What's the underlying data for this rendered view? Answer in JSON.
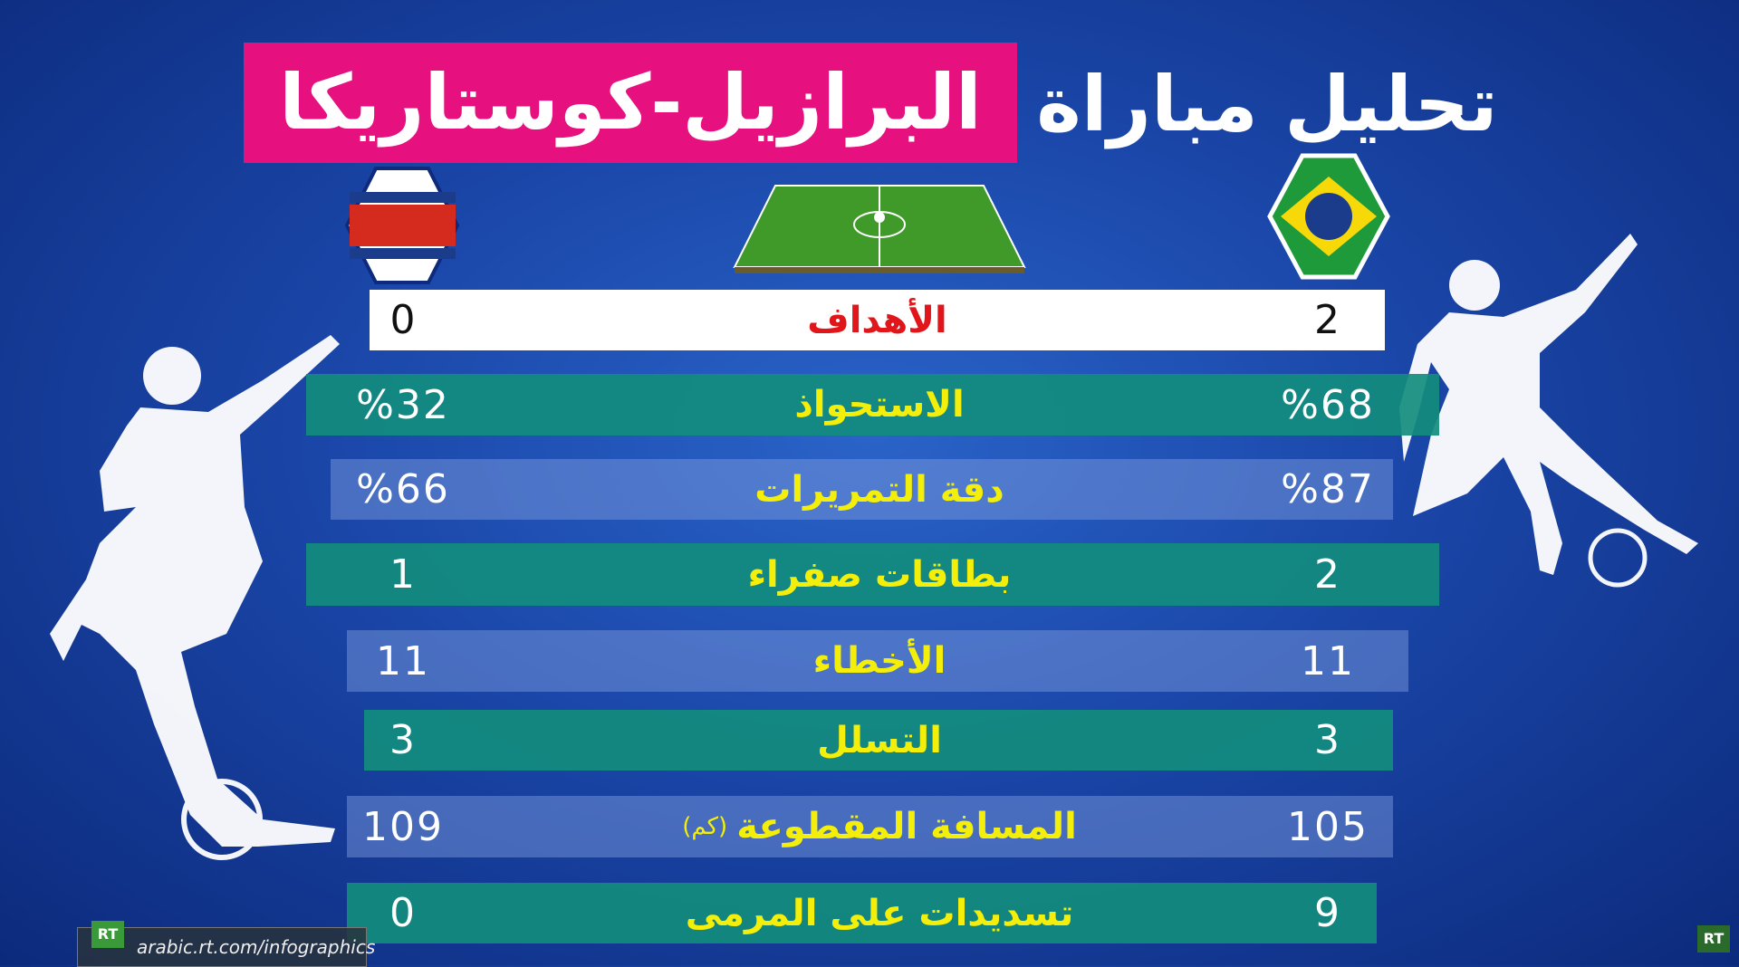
{
  "header": {
    "title": "تحليل مباراة",
    "highlight": "البرازيل-كوستاريكا"
  },
  "goals": {
    "label": "الأهداف",
    "right": "2",
    "left": "0"
  },
  "table": {
    "rows": [
      {
        "label": "الاستحواذ",
        "right": "%68",
        "left": "%32"
      },
      {
        "label": "دقة التمريرات",
        "right": "%87",
        "left": "%66"
      },
      {
        "label": "بطاقات صفراء",
        "right": "2",
        "left": "1"
      },
      {
        "label": "الأخطاء",
        "right": "11",
        "left": "11"
      },
      {
        "label": "التسلل",
        "right": "3",
        "left": "3"
      },
      {
        "label": "المسافة المقطوعة",
        "unit": "(كم)",
        "right": "105",
        "left": "109"
      },
      {
        "label": "تسديدات على المرمى",
        "right": "9",
        "left": "0"
      }
    ]
  },
  "footer": {
    "logo": "RT",
    "url": "arabic.rt.com/infographics",
    "corner_logo": "RT"
  }
}
